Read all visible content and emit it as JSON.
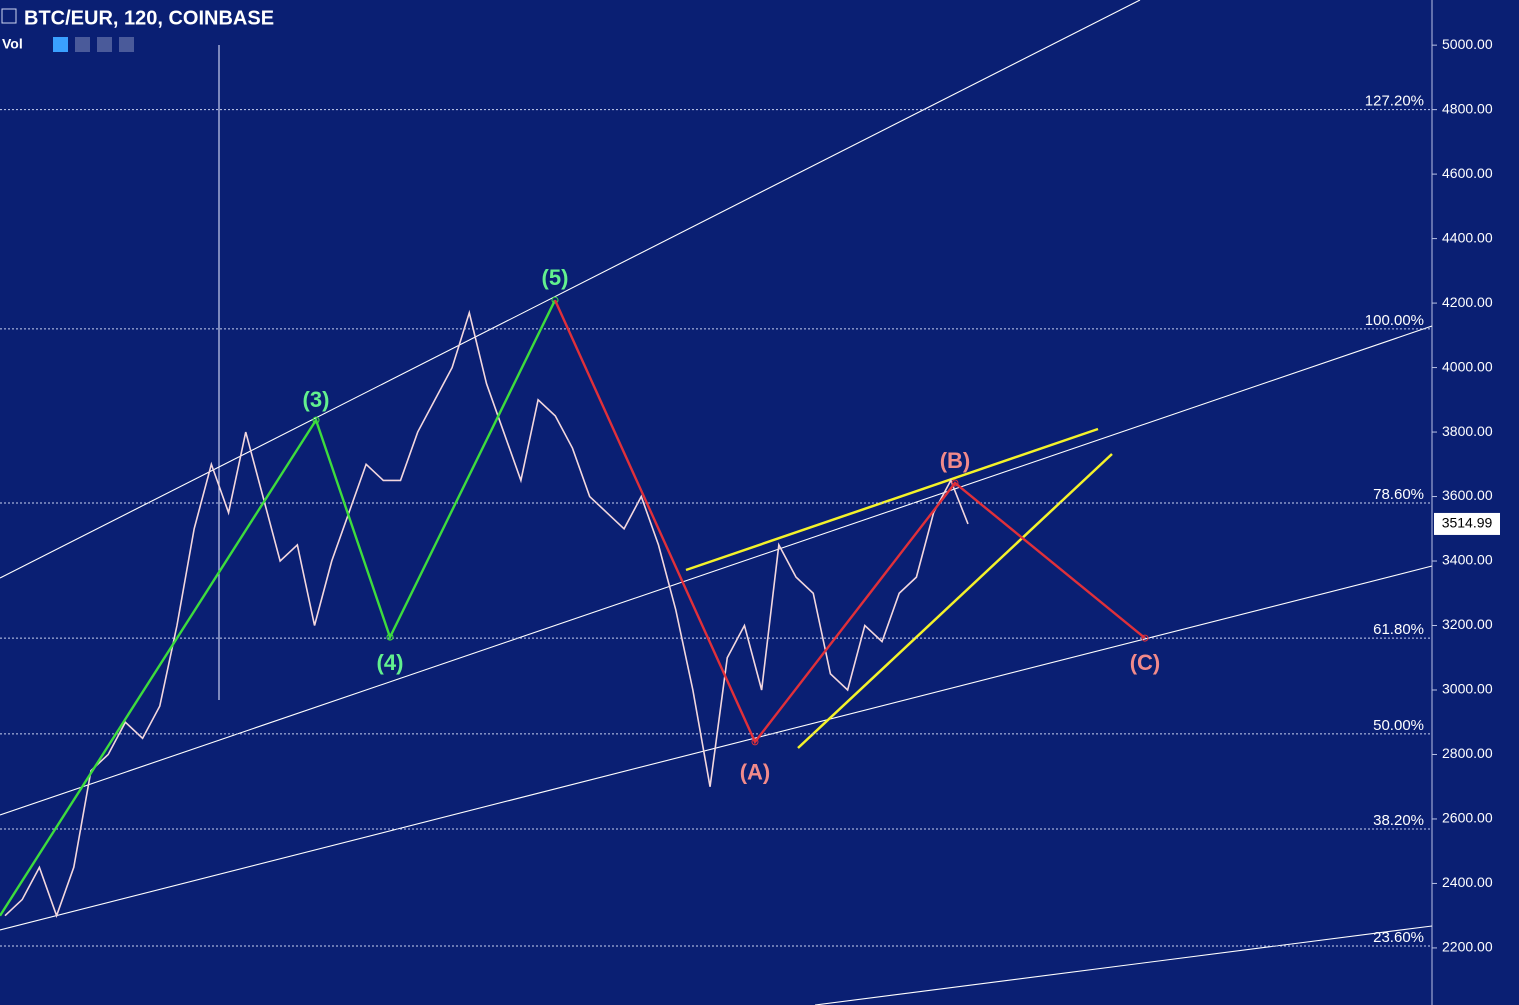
{
  "chart_data": {
    "type": "line",
    "title": "BTC/EUR, 120, COINBASE",
    "indicator": "Vol",
    "background": "#0a1f73",
    "categories": [
      null,
      null,
      null,
      null,
      null,
      null,
      null,
      null,
      null,
      null,
      null,
      null,
      null,
      null,
      null,
      null,
      null,
      null,
      null,
      null,
      null,
      null,
      null,
      null,
      null,
      null,
      null,
      null,
      null,
      null,
      null,
      null,
      null,
      null,
      null,
      null,
      null,
      null,
      null,
      null,
      null,
      null,
      null,
      null,
      null,
      null,
      null,
      null,
      null,
      null,
      null,
      null,
      null,
      null,
      null,
      null,
      null
    ],
    "series": [
      {
        "name": "BTC/EUR",
        "color": "#f3d7de",
        "values": [
          2300,
          2350,
          2450,
          2300,
          2450,
          2750,
          2800,
          2900,
          2850,
          2950,
          3200,
          3500,
          3700,
          3550,
          3800,
          3600,
          3400,
          3450,
          3200,
          3400,
          3550,
          3700,
          3650,
          3650,
          3800,
          3900,
          4000,
          4170,
          3950,
          3800,
          3650,
          3900,
          3850,
          3750,
          3600,
          3550,
          3500,
          3600,
          3450,
          3250,
          3000,
          2700,
          3100,
          3200,
          3000,
          3450,
          3350,
          3300,
          3050,
          3000,
          3200,
          3150,
          3300,
          3350,
          3550,
          3650,
          3515
        ]
      }
    ],
    "last_price": {
      "value": 3514.99,
      "label": "3514.99"
    },
    "ylim": [
      2023,
      5140
    ],
    "yticks": [
      {
        "value": 2200,
        "label": "2200.00"
      },
      {
        "value": 2400,
        "label": "2400.00"
      },
      {
        "value": 2600,
        "label": "2600.00"
      },
      {
        "value": 2800,
        "label": "2800.00"
      },
      {
        "value": 3000,
        "label": "3000.00"
      },
      {
        "value": 3200,
        "label": "3200.00"
      },
      {
        "value": 3400,
        "label": "3400.00"
      },
      {
        "value": 3600,
        "label": "3600.00"
      },
      {
        "value": 3800,
        "label": "3800.00"
      },
      {
        "value": 4000,
        "label": "4000.00"
      },
      {
        "value": 4200,
        "label": "4200.00"
      },
      {
        "value": 4400,
        "label": "4400.00"
      },
      {
        "value": 4600,
        "label": "4600.00"
      },
      {
        "value": 4800,
        "label": "4800.00"
      },
      {
        "value": 5000,
        "label": "5000.00"
      }
    ],
    "fib_levels": [
      {
        "label": "127.20%",
        "value": 4800
      },
      {
        "label": "100.00%",
        "value": 4120
      },
      {
        "label": "78.60%",
        "value": 3580
      },
      {
        "label": "61.80%",
        "value": 3161
      },
      {
        "label": "50.00%",
        "value": 2864
      },
      {
        "label": "38.20%",
        "value": 2569
      },
      {
        "label": "23.60%",
        "value": 2206
      }
    ],
    "impulse_waves": {
      "color": "#3ddc3d",
      "label_color": "#62f08e",
      "points": [
        {
          "label": "(3)",
          "value": 3837
        },
        {
          "label": "(4)",
          "value": 3164
        },
        {
          "label": "(5)",
          "value": 4209
        }
      ]
    },
    "corrective_waves": {
      "color": "#e0303a",
      "label_color": "#f28a8a",
      "points": [
        {
          "label": "(A)",
          "value": 2839
        },
        {
          "label": "(B)",
          "value": 3642
        },
        {
          "label": "(C)",
          "value": 3161
        }
      ]
    }
  }
}
